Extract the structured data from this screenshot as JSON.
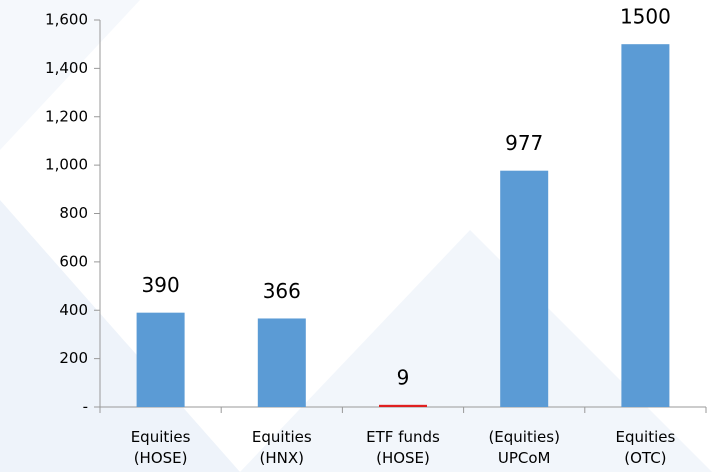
{
  "chart_data": {
    "type": "bar",
    "categories": [
      [
        "Equities",
        "(HOSE)"
      ],
      [
        "Equities",
        "(HNX)"
      ],
      [
        "ETF funds",
        "(HOSE)"
      ],
      [
        "(Equities)",
        "UPCoM"
      ],
      [
        "Equities",
        "(OTC)"
      ]
    ],
    "values": [
      390,
      366,
      9,
      977,
      1500
    ],
    "colors": [
      "#5b9bd5",
      "#5b9bd5",
      "#e02020",
      "#5b9bd5",
      "#5b9bd5"
    ],
    "ylim": [
      0,
      1600
    ],
    "yticks": [
      {
        "value": 0,
        "label": "-"
      },
      200,
      400,
      600,
      800,
      {
        "value": 1000,
        "label": "1,000"
      },
      {
        "value": 1200,
        "label": "1,200"
      },
      {
        "value": 1400,
        "label": "1,400"
      },
      {
        "value": 1600,
        "label": "1,600"
      }
    ],
    "data_labels": true
  }
}
